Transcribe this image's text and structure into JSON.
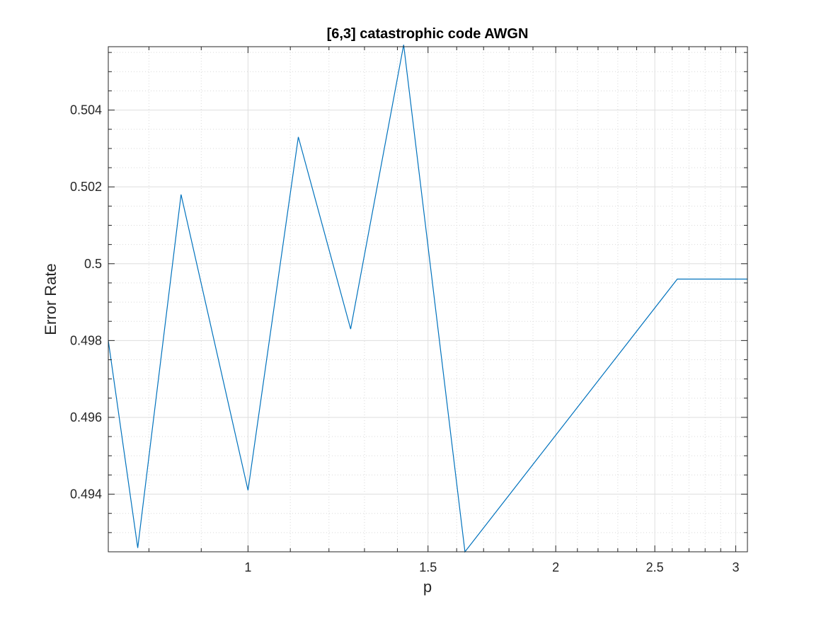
{
  "chart_data": {
    "type": "line",
    "title": "[6,3] catastrophic code AWGN",
    "xlabel": "p",
    "ylabel": "Error Rate",
    "x_scale": "log",
    "xlim": [
      0.73,
      3.08
    ],
    "ylim": [
      0.4925,
      0.50565
    ],
    "grid": true,
    "minor_grid": true,
    "x_major_ticks": [
      1,
      1.5,
      2,
      2.5,
      3
    ],
    "x_tick_labels": [
      "1",
      "1.5",
      "2",
      "2.5",
      "3"
    ],
    "x_minor_ticks": [
      0.8,
      0.9,
      1.1,
      1.2,
      1.3,
      1.4,
      1.6,
      1.7,
      1.8,
      1.9,
      2.1,
      2.2,
      2.3,
      2.4,
      2.6,
      2.7,
      2.8,
      2.9
    ],
    "y_major_ticks": [
      0.494,
      0.496,
      0.498,
      0.5,
      0.502,
      0.504
    ],
    "y_tick_labels": [
      "0.494",
      "0.496",
      "0.498",
      "0.5",
      "0.502",
      "0.504"
    ],
    "y_minor_step": 0.0005,
    "series": [
      {
        "color": "#0072BD",
        "x": [
          0.73,
          0.78,
          0.86,
          1.0,
          1.12,
          1.26,
          1.42,
          1.63,
          2.63,
          3.08
        ],
        "y": [
          0.498,
          0.4926,
          0.5018,
          0.4941,
          0.5033,
          0.4983,
          0.5057,
          0.4925,
          0.4996,
          0.4996
        ]
      }
    ]
  }
}
